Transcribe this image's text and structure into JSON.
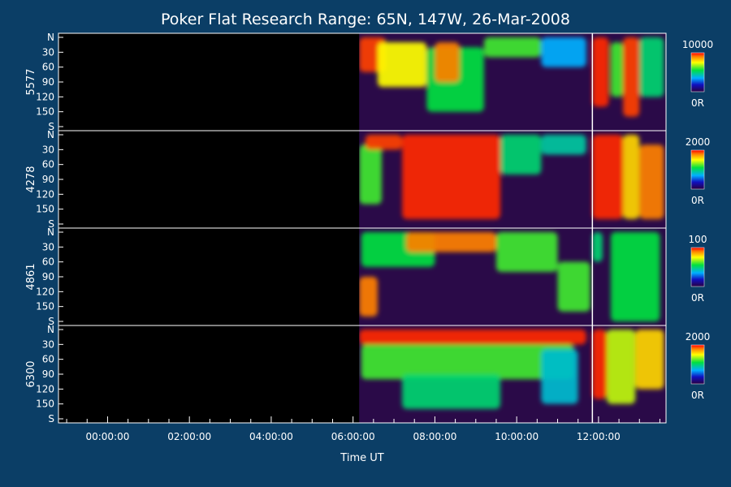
{
  "chart_data": {
    "type": "heatmap",
    "title": "Poker Flat Research Range: 65N, 147W, 26-Mar-2008",
    "xlabel": "Time UT",
    "x_ticks": [
      "00:00:00",
      "02:00:00",
      "04:00:00",
      "06:00:00",
      "08:00:00",
      "10:00:00",
      "12:00:00"
    ],
    "x_range_hours": [
      -1.2,
      13.65
    ],
    "y_ticks": [
      "N",
      "30",
      "60",
      "90",
      "120",
      "150",
      "S"
    ],
    "data_start_hour": 6.15,
    "gap_hour": 11.85,
    "panels": [
      {
        "wavelength": "5577",
        "cbar_max": "10000",
        "cbar_min": "0R",
        "regions": [
          {
            "t0": 6.15,
            "t1": 6.8,
            "y0": 0,
            "y1": 70,
            "level": 0.95
          },
          {
            "t0": 6.6,
            "t1": 7.8,
            "y0": 10,
            "y1": 100,
            "level": 0.75
          },
          {
            "t0": 7.8,
            "t1": 9.2,
            "y0": 20,
            "y1": 150,
            "level": 0.55
          },
          {
            "t0": 8.0,
            "t1": 8.6,
            "y0": 10,
            "y1": 90,
            "level": 0.9
          },
          {
            "t0": 9.2,
            "t1": 10.6,
            "y0": 0,
            "y1": 40,
            "level": 0.6
          },
          {
            "t0": 10.6,
            "t1": 11.7,
            "y0": 0,
            "y1": 60,
            "level": 0.35
          },
          {
            "t0": 11.85,
            "t1": 12.25,
            "y0": 0,
            "y1": 140,
            "level": 0.97
          },
          {
            "t0": 12.3,
            "t1": 12.6,
            "y0": 10,
            "y1": 120,
            "level": 0.6
          },
          {
            "t0": 12.6,
            "t1": 13.0,
            "y0": 0,
            "y1": 160,
            "level": 0.95
          },
          {
            "t0": 13.0,
            "t1": 13.6,
            "y0": 0,
            "y1": 120,
            "level": 0.5
          }
        ]
      },
      {
        "wavelength": "4278",
        "cbar_max": "2000",
        "cbar_min": "0R",
        "regions": [
          {
            "t0": 6.15,
            "t1": 6.7,
            "y0": 20,
            "y1": 140,
            "level": 0.6
          },
          {
            "t0": 6.3,
            "t1": 7.2,
            "y0": 0,
            "y1": 30,
            "level": 0.95
          },
          {
            "t0": 7.2,
            "t1": 9.6,
            "y0": 0,
            "y1": 170,
            "level": 0.97
          },
          {
            "t0": 9.6,
            "t1": 10.6,
            "y0": 0,
            "y1": 80,
            "level": 0.5
          },
          {
            "t0": 10.6,
            "t1": 11.7,
            "y0": 0,
            "y1": 40,
            "level": 0.45
          },
          {
            "t0": 11.85,
            "t1": 12.6,
            "y0": 0,
            "y1": 170,
            "level": 0.97
          },
          {
            "t0": 12.6,
            "t1": 13.0,
            "y0": 0,
            "y1": 170,
            "level": 0.8
          },
          {
            "t0": 13.0,
            "t1": 13.6,
            "y0": 20,
            "y1": 170,
            "level": 0.9
          }
        ]
      },
      {
        "wavelength": "4861",
        "cbar_max": "100",
        "cbar_min": "0R",
        "regions": [
          {
            "t0": 6.15,
            "t1": 6.6,
            "y0": 90,
            "y1": 170,
            "level": 0.9
          },
          {
            "t0": 6.2,
            "t1": 8.0,
            "y0": 0,
            "y1": 70,
            "level": 0.55
          },
          {
            "t0": 7.3,
            "t1": 9.5,
            "y0": 0,
            "y1": 40,
            "level": 0.9
          },
          {
            "t0": 9.5,
            "t1": 11.0,
            "y0": 0,
            "y1": 80,
            "level": 0.6
          },
          {
            "t0": 11.0,
            "t1": 11.8,
            "y0": 60,
            "y1": 160,
            "level": 0.6
          },
          {
            "t0": 11.85,
            "t1": 12.1,
            "y0": 0,
            "y1": 60,
            "level": 0.5
          },
          {
            "t0": 12.3,
            "t1": 13.5,
            "y0": 0,
            "y1": 180,
            "level": 0.55
          }
        ]
      },
      {
        "wavelength": "6300",
        "cbar_max": "2000",
        "cbar_min": "0R",
        "regions": [
          {
            "t0": 6.15,
            "t1": 11.7,
            "y0": 0,
            "y1": 30,
            "level": 0.97
          },
          {
            "t0": 6.2,
            "t1": 11.4,
            "y0": 30,
            "y1": 100,
            "level": 0.6
          },
          {
            "t0": 7.2,
            "t1": 9.6,
            "y0": 90,
            "y1": 160,
            "level": 0.5
          },
          {
            "t0": 10.6,
            "t1": 11.5,
            "y0": 40,
            "y1": 150,
            "level": 0.4
          },
          {
            "t0": 11.85,
            "t1": 12.2,
            "y0": 0,
            "y1": 140,
            "level": 0.97
          },
          {
            "t0": 12.2,
            "t1": 12.9,
            "y0": 0,
            "y1": 150,
            "level": 0.7
          },
          {
            "t0": 12.9,
            "t1": 13.6,
            "y0": 0,
            "y1": 120,
            "level": 0.8
          }
        ]
      }
    ]
  }
}
